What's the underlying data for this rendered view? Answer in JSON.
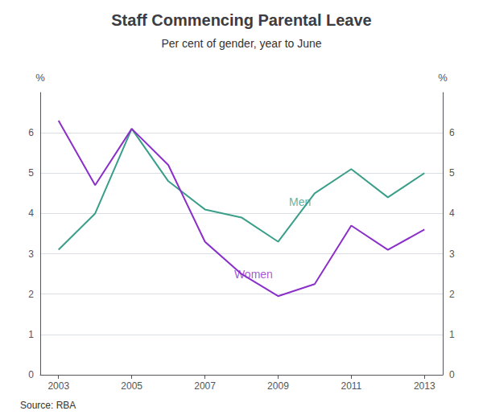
{
  "chart_data": {
    "type": "line",
    "title": "Staff Commencing Parental Leave",
    "subtitle": "Per cent of gender, year to June",
    "source": "Source: RBA",
    "ylabel": "%",
    "y2label": "%",
    "x": [
      2003,
      2004,
      2005,
      2006,
      2007,
      2008,
      2009,
      2010,
      2011,
      2012,
      2013
    ],
    "series": [
      {
        "name": "Men",
        "color": "#3a9e8a",
        "values": [
          3.1,
          4.0,
          6.1,
          4.8,
          4.1,
          3.9,
          3.3,
          4.5,
          5.1,
          4.4,
          5.0
        ]
      },
      {
        "name": "Women",
        "color": "#8b2fc9",
        "values": [
          6.3,
          4.7,
          6.1,
          5.2,
          3.3,
          2.5,
          1.95,
          2.25,
          3.7,
          3.1,
          3.6
        ]
      }
    ],
    "annotations": [
      {
        "text": "Men",
        "x": 2009.3,
        "y": 4.15,
        "color": "#3a9e8a"
      },
      {
        "text": "Women",
        "x": 2007.8,
        "y": 2.35,
        "color": "#8b2fc9"
      }
    ],
    "xlim": [
      2002.5,
      2013.5
    ],
    "xticks": [
      2003,
      2005,
      2007,
      2009,
      2011,
      2013
    ],
    "ylim": [
      0,
      7
    ],
    "yticks": [
      0,
      1,
      2,
      3,
      4,
      5,
      6
    ],
    "y2lim": [
      0,
      7
    ],
    "y2ticks": [
      0,
      1,
      2,
      3,
      4,
      5,
      6
    ],
    "grid": true
  }
}
